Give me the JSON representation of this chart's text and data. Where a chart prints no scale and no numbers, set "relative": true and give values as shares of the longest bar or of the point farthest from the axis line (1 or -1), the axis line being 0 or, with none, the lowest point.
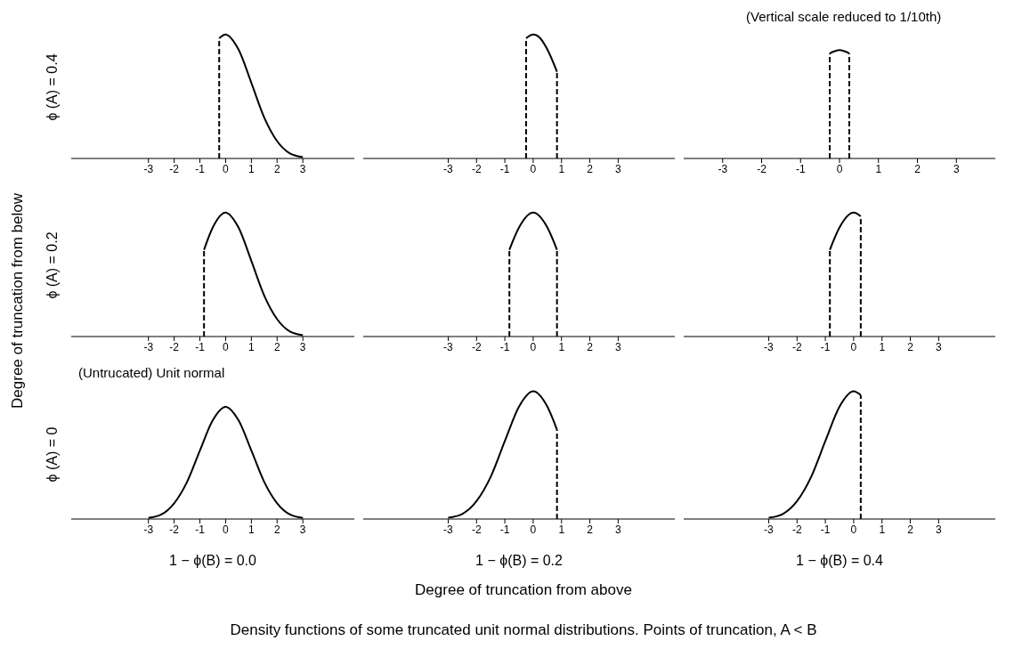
{
  "chart_data": [
    {
      "type": "line",
      "relative": true,
      "ylabel": "ϕ (A) = 0.4",
      "xlim": [
        -6,
        5
      ],
      "xticks": [
        -3,
        -2,
        -1,
        0,
        1,
        2,
        3
      ],
      "series": [
        {
          "color": "#000000",
          "x": [
            -0.25,
            0,
            0.5,
            1,
            1.5,
            2,
            2.5,
            3
          ],
          "values": [
            0.97,
            1,
            0.88,
            0.61,
            0.33,
            0.14,
            0.04,
            0.01
          ]
        },
        {
          "color": "#000000",
          "line_style": "dashed",
          "x": [
            -0.25,
            -0.25
          ],
          "values": [
            0,
            0.97
          ]
        }
      ]
    },
    {
      "type": "line",
      "relative": true,
      "xlim": [
        -6,
        5
      ],
      "xticks": [
        -3,
        -2,
        -1,
        0,
        1,
        2,
        3
      ],
      "series": [
        {
          "color": "#000000",
          "x": [
            -0.25,
            0,
            0.25,
            0.5,
            0.84
          ],
          "values": [
            0.97,
            1,
            0.97,
            0.88,
            0.7
          ]
        },
        {
          "color": "#000000",
          "line_style": "dashed",
          "x": [
            -0.25,
            -0.25
          ],
          "values": [
            0,
            0.97
          ]
        },
        {
          "color": "#000000",
          "line_style": "dashed",
          "x": [
            0.84,
            0.84
          ],
          "values": [
            0,
            0.7
          ]
        }
      ]
    },
    {
      "type": "line",
      "relative": true,
      "annotations": [
        "(Vertical scale reduced to 1/10th)"
      ],
      "xlim": [
        -4,
        4
      ],
      "xticks": [
        -3,
        -2,
        -1,
        0,
        1,
        2,
        3
      ],
      "series": [
        {
          "color": "#000000",
          "x": [
            -0.25,
            0,
            0.25
          ],
          "values": [
            0.97,
            1,
            0.97
          ]
        },
        {
          "color": "#000000",
          "line_style": "dashed",
          "x": [
            -0.25,
            -0.25
          ],
          "values": [
            0,
            0.97
          ]
        },
        {
          "color": "#000000",
          "line_style": "dashed",
          "x": [
            0.25,
            0.25
          ],
          "values": [
            0,
            0.97
          ]
        }
      ]
    },
    {
      "type": "line",
      "relative": true,
      "ylabel": "ϕ (A) = 0.2",
      "xlim": [
        -6,
        5
      ],
      "xticks": [
        -3,
        -2,
        -1,
        0,
        1,
        2,
        3
      ],
      "series": [
        {
          "color": "#000000",
          "x": [
            -0.84,
            -0.5,
            0,
            0.5,
            1,
            1.5,
            2,
            2.5,
            3
          ],
          "values": [
            0.7,
            0.88,
            1,
            0.88,
            0.61,
            0.33,
            0.14,
            0.04,
            0.01
          ]
        },
        {
          "color": "#000000",
          "line_style": "dashed",
          "x": [
            -0.84,
            -0.84
          ],
          "values": [
            0,
            0.7
          ]
        }
      ]
    },
    {
      "type": "line",
      "relative": true,
      "xlim": [
        -6,
        5
      ],
      "xticks": [
        -3,
        -2,
        -1,
        0,
        1,
        2,
        3
      ],
      "series": [
        {
          "color": "#000000",
          "x": [
            -0.84,
            -0.5,
            0,
            0.5,
            0.84
          ],
          "values": [
            0.7,
            0.88,
            1,
            0.88,
            0.7
          ]
        },
        {
          "color": "#000000",
          "line_style": "dashed",
          "x": [
            -0.84,
            -0.84
          ],
          "values": [
            0,
            0.7
          ]
        },
        {
          "color": "#000000",
          "line_style": "dashed",
          "x": [
            0.84,
            0.84
          ],
          "values": [
            0,
            0.7
          ]
        }
      ]
    },
    {
      "type": "line",
      "relative": true,
      "xlim": [
        -6,
        5
      ],
      "xticks": [
        -3,
        -2,
        -1,
        0,
        1,
        2,
        3
      ],
      "series": [
        {
          "color": "#000000",
          "x": [
            -0.84,
            -0.5,
            0,
            0.25
          ],
          "values": [
            0.7,
            0.88,
            1,
            0.97
          ]
        },
        {
          "color": "#000000",
          "line_style": "dashed",
          "x": [
            -0.84,
            -0.84
          ],
          "values": [
            0,
            0.7
          ]
        },
        {
          "color": "#000000",
          "line_style": "dashed",
          "x": [
            0.25,
            0.25
          ],
          "values": [
            0,
            0.97
          ]
        }
      ]
    },
    {
      "type": "line",
      "relative": true,
      "ylabel": "ϕ (A) = 0",
      "xlabel": "1 − ϕ(B) = 0.0",
      "annotations": [
        "(Untrucated) Unit normal"
      ],
      "xlim": [
        -6,
        5
      ],
      "xticks": [
        -3,
        -2,
        -1,
        0,
        1,
        2,
        3
      ],
      "series": [
        {
          "color": "#000000",
          "x": [
            -3,
            -2.5,
            -2,
            -1.5,
            -1,
            -0.5,
            0,
            0.5,
            1,
            1.5,
            2,
            2.5,
            3
          ],
          "values": [
            0.01,
            0.04,
            0.14,
            0.33,
            0.61,
            0.88,
            1,
            0.88,
            0.61,
            0.33,
            0.14,
            0.04,
            0.01
          ]
        }
      ]
    },
    {
      "type": "line",
      "relative": true,
      "xlabel": "1 − ϕ(B) = 0.2",
      "xlim": [
        -6,
        5
      ],
      "xticks": [
        -3,
        -2,
        -1,
        0,
        1,
        2,
        3
      ],
      "series": [
        {
          "color": "#000000",
          "x": [
            -3,
            -2.5,
            -2,
            -1.5,
            -1,
            -0.5,
            0,
            0.5,
            0.84
          ],
          "values": [
            0.01,
            0.04,
            0.14,
            0.33,
            0.61,
            0.88,
            1,
            0.88,
            0.7
          ]
        },
        {
          "color": "#000000",
          "line_style": "dashed",
          "x": [
            0.84,
            0.84
          ],
          "values": [
            0,
            0.7
          ]
        }
      ]
    },
    {
      "type": "line",
      "relative": true,
      "xlabel": "1 − ϕ(B) = 0.4",
      "xlim": [
        -6,
        5
      ],
      "xticks": [
        -3,
        -2,
        -1,
        0,
        1,
        2,
        3
      ],
      "series": [
        {
          "color": "#000000",
          "x": [
            -3,
            -2.5,
            -2,
            -1.5,
            -1,
            -0.5,
            0,
            0.25
          ],
          "values": [
            0.01,
            0.04,
            0.14,
            0.33,
            0.61,
            0.88,
            1,
            0.97
          ]
        },
        {
          "color": "#000000",
          "line_style": "dashed",
          "x": [
            0.25,
            0.25
          ],
          "values": [
            0,
            0.97
          ]
        }
      ]
    },
    {
      "type": "other",
      "xlabel": "Degree of truncation from above",
      "ylabel": "Degree of truncation from below",
      "annotations": [
        "Density functions of some truncated unit normal distributions. Points of truncation, A < B"
      ]
    }
  ]
}
